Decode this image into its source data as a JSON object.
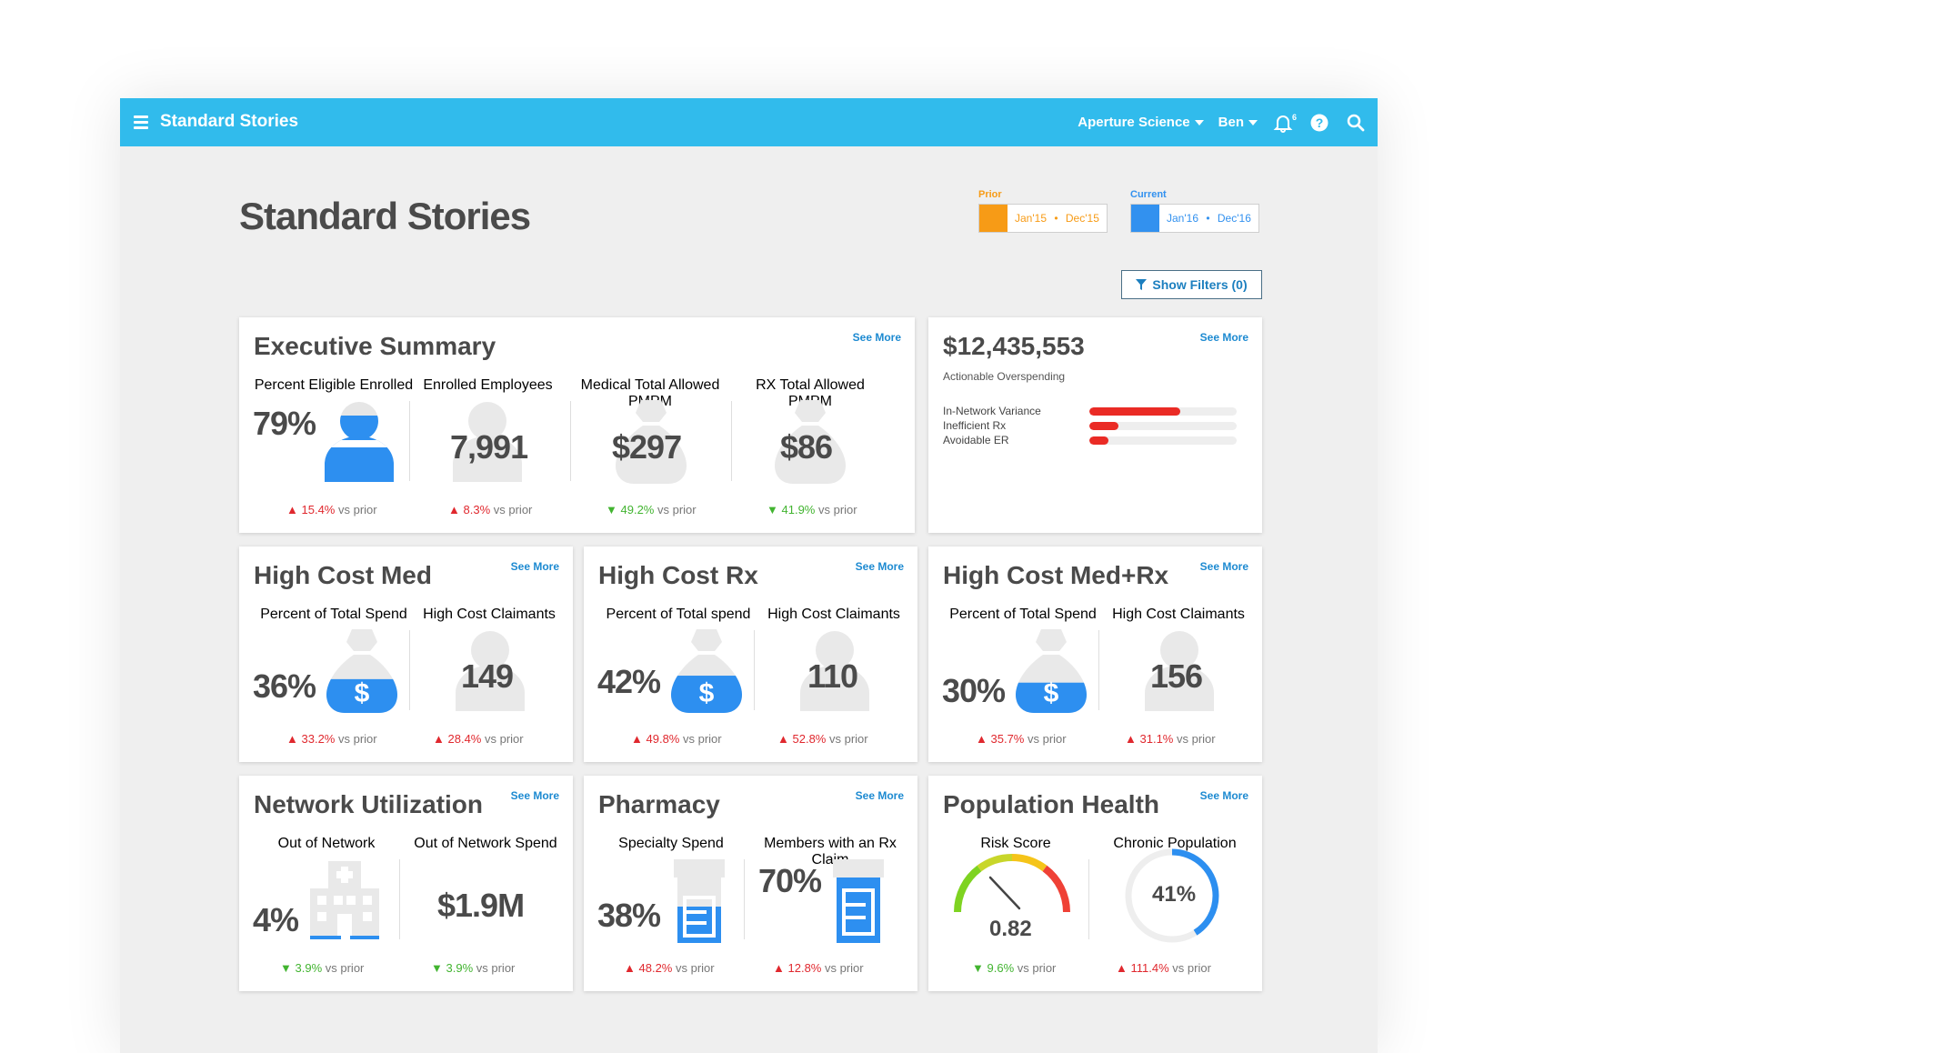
{
  "header": {
    "title": "Standard Stories",
    "org": "Aperture Science",
    "user": "Ben",
    "notif_count": "6"
  },
  "page_title": "Standard Stories",
  "periods": {
    "prior": {
      "label": "Prior",
      "start": "Jan'15",
      "end": "Dec'15",
      "color": "#f79b16"
    },
    "current": {
      "label": "Current",
      "start": "Jan'16",
      "end": "Dec'16",
      "color": "#3291ef"
    },
    "separator": "•"
  },
  "filters_label": "Show Filters (0)",
  "see_more": "See More",
  "vs_prior": "vs prior",
  "executive": {
    "title": "Executive Summary",
    "metrics": [
      {
        "label": "Percent Eligible Enrolled",
        "value": "79%",
        "delta": "15.4%",
        "dir": "up"
      },
      {
        "label": "Enrolled Employees",
        "value": "7,991",
        "delta": "8.3%",
        "dir": "up"
      },
      {
        "label": "Medical Total Allowed PMPM",
        "value": "$297",
        "delta": "49.2%",
        "dir": "down"
      },
      {
        "label": "RX Total Allowed PMPM",
        "value": "$86",
        "delta": "41.9%",
        "dir": "down"
      }
    ]
  },
  "overspending": {
    "value": "$12,435,553",
    "label": "Actionable Overspending",
    "bars": [
      {
        "label": "In-Network Variance",
        "fraction": 0.62
      },
      {
        "label": "Inefficient Rx",
        "fraction": 0.2
      },
      {
        "label": "Avoidable ER",
        "fraction": 0.13
      }
    ]
  },
  "hc_med": {
    "title": "High Cost Med",
    "m1_label": "Percent of Total Spend",
    "m1_value": "36%",
    "m1_delta": "33.2%",
    "m1_fill": 0.36,
    "m2_label": "High Cost Claimants",
    "m2_value": "149",
    "m2_delta": "28.4%"
  },
  "hc_rx": {
    "title": "High Cost Rx",
    "m1_label": "Percent of Total spend",
    "m1_value": "42%",
    "m1_delta": "49.8%",
    "m1_fill": 0.42,
    "m2_label": "High Cost Claimants",
    "m2_value": "110",
    "m2_delta": "52.8%"
  },
  "hc_medrx": {
    "title": "High Cost Med+Rx",
    "m1_label": "Percent of Total Spend",
    "m1_value": "30%",
    "m1_delta": "35.7%",
    "m1_fill": 0.3,
    "m2_label": "High Cost Claimants",
    "m2_value": "156",
    "m2_delta": "31.1%"
  },
  "network": {
    "title": "Network Utilization",
    "m1_label": "Out of Network",
    "m1_value": "4%",
    "m1_delta": "3.9%",
    "m2_label": "Out of Network Spend",
    "m2_value": "$1.9M",
    "m2_delta": "3.9%"
  },
  "pharmacy": {
    "title": "Pharmacy",
    "m1_label": "Specialty Spend",
    "m1_value": "38%",
    "m1_delta": "48.2%",
    "m2_label": "Members with an Rx Claim",
    "m2_value": "70%",
    "m2_delta": "12.8%"
  },
  "population": {
    "title": "Population Health",
    "m1_label": "Risk Score",
    "m1_value": "0.82",
    "m1_delta": "9.6%",
    "m2_label": "Chronic Population",
    "m2_value": "41%",
    "m2_delta": "111.4%",
    "m2_fraction": 0.41
  }
}
